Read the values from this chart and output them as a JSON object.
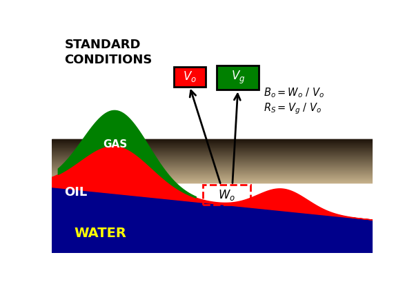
{
  "bg_color": "#ffffff",
  "water_color": "#00008B",
  "oil_color": "#FF0000",
  "gas_color": "#008000",
  "Vo_box_color": "#FF0000",
  "Vg_box_color": "#008000",
  "Wo_box_edge": "#FF0000",
  "text_color_white": "#FFFFFF",
  "text_color_yellow": "#FFFF00",
  "text_color_black": "#000000",
  "label_gas": "GAS",
  "label_oil": "OIL",
  "label_water": "WATER",
  "figsize": [
    6.0,
    4.12
  ],
  "dpi": 100
}
